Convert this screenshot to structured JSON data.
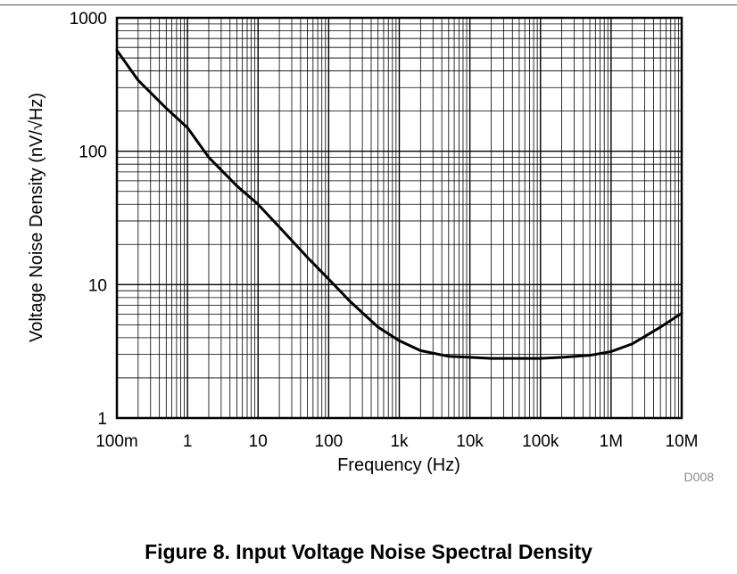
{
  "figure": {
    "caption": "Figure 8. Input Voltage Noise Spectral Density",
    "code": "D008"
  },
  "colors": {
    "grid": "#000000",
    "curve": "#000000",
    "code_label": "#8a8a8a"
  },
  "chart_data": {
    "type": "line",
    "title": "",
    "xlabel": "Frequency (Hz)",
    "ylabel": "Voltage Noise Density (nV/√Hz)",
    "xscale": "log",
    "yscale": "log",
    "xlim": [
      0.1,
      10000000
    ],
    "ylim": [
      1,
      1000
    ],
    "grid": true,
    "legend": "none",
    "x_ticks": [
      {
        "value": 0.1,
        "label": "100m"
      },
      {
        "value": 1,
        "label": "1"
      },
      {
        "value": 10,
        "label": "10"
      },
      {
        "value": 100,
        "label": "100"
      },
      {
        "value": 1000,
        "label": "1k"
      },
      {
        "value": 10000,
        "label": "10k"
      },
      {
        "value": 100000,
        "label": "100k"
      },
      {
        "value": 1000000,
        "label": "1M"
      },
      {
        "value": 10000000,
        "label": "10M"
      }
    ],
    "y_ticks": [
      {
        "value": 1,
        "label": "1"
      },
      {
        "value": 10,
        "label": "10"
      },
      {
        "value": 100,
        "label": "100"
      },
      {
        "value": 1000,
        "label": "1000"
      }
    ],
    "series": [
      {
        "x": [
          0.1,
          0.2,
          0.5,
          1,
          2,
          5,
          10,
          20,
          50,
          100,
          200,
          500,
          1000,
          2000,
          5000,
          10000,
          20000,
          50000,
          100000,
          200000,
          500000,
          1000000,
          2000000,
          5000000,
          10000000
        ],
        "y": [
          570,
          340,
          210,
          150,
          90,
          55,
          40,
          27,
          16,
          11,
          7.5,
          4.8,
          3.8,
          3.2,
          2.9,
          2.85,
          2.8,
          2.8,
          2.8,
          2.85,
          2.95,
          3.15,
          3.6,
          4.8,
          6.1
        ]
      }
    ]
  }
}
